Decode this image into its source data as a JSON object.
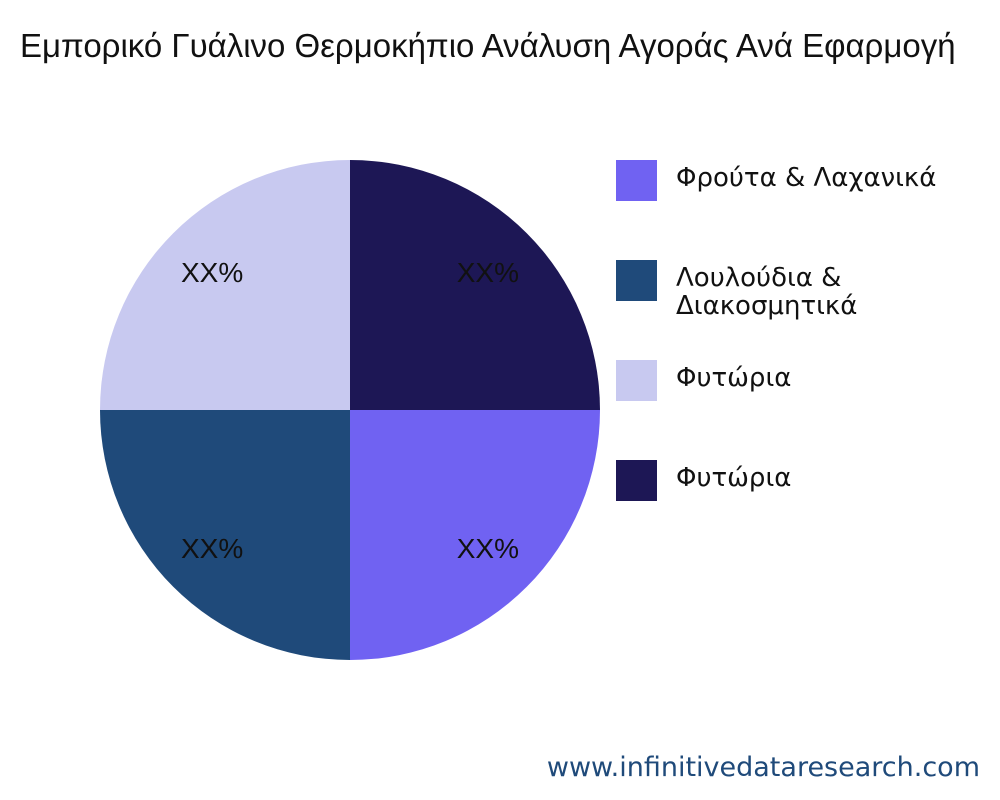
{
  "chart_data": {
    "type": "pie",
    "title": "Εμπορικό Γυάλινο Θερμοκήπιο Ανάλυση Αγοράς Ανά Εφαρμογή",
    "categories": [
      "Φρούτα & Λαχανικά",
      "Λουλούδια & Διακοσμητικά",
      "Φυτώρια",
      "Φυτώρια"
    ],
    "values": [
      25,
      25,
      25,
      25
    ],
    "data_labels": [
      "XX%",
      "XX%",
      "XX%",
      "XX%"
    ],
    "colors": [
      "#7062f2",
      "#1f4a7a",
      "#c8c9f0",
      "#1d1755"
    ],
    "legend_position": "right"
  },
  "footer": {
    "source": "www.infinitivedataresearch.com"
  }
}
